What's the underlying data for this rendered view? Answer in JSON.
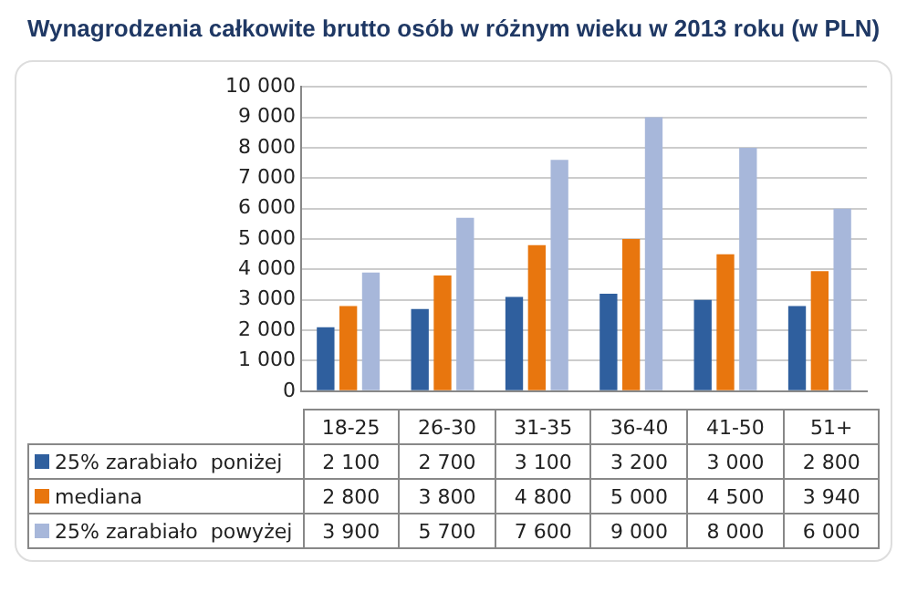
{
  "chart_data": {
    "type": "bar",
    "title": "Wynagrodzenia całkowite brutto osób w różnym wieku w 2013 roku (w PLN)",
    "categories": [
      "18-25",
      "26-30",
      "31-35",
      "36-40",
      "41-50",
      "51+"
    ],
    "series": [
      {
        "name": "25% zarabiało  poniżej",
        "color": "#2f5f9e",
        "values": [
          2100,
          2700,
          3100,
          3200,
          3000,
          2800
        ],
        "value_labels": [
          "2 100",
          "2 700",
          "3 100",
          "3 200",
          "3 000",
          "2 800"
        ]
      },
      {
        "name": "mediana",
        "color": "#e8760e",
        "values": [
          2800,
          3800,
          4800,
          5000,
          4500,
          3940
        ],
        "value_labels": [
          "2 800",
          "3 800",
          "4 800",
          "5 000",
          "4 500",
          "3 940"
        ]
      },
      {
        "name": "25% zarabiało  powyżej",
        "color": "#a7b7da",
        "values": [
          3900,
          5700,
          7600,
          9000,
          8000,
          6000
        ],
        "value_labels": [
          "3 900",
          "5 700",
          "7 600",
          "9 000",
          "8 000",
          "6 000"
        ]
      }
    ],
    "ylim": [
      0,
      10000
    ],
    "yticks": [
      0,
      {
        "value": 1000,
        "label": "1 000"
      },
      {
        "value": 2000,
        "label": "2 000"
      },
      {
        "value": 3000,
        "label": "3 000"
      },
      {
        "value": 4000,
        "label": "4 000"
      },
      {
        "value": 5000,
        "label": "5 000"
      },
      {
        "value": 6000,
        "label": "6 000"
      },
      {
        "value": 7000,
        "label": "7 000"
      },
      {
        "value": 8000,
        "label": "8 000"
      },
      {
        "value": 9000,
        "label": "9 000"
      },
      {
        "value": 10000,
        "label": "10 000"
      }
    ],
    "grid": "y",
    "legend": "bottom"
  }
}
